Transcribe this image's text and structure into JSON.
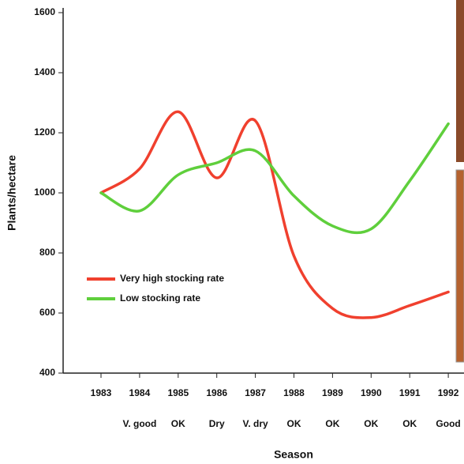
{
  "chart_data": {
    "type": "line",
    "y_label": "Plants/hectare",
    "x_label": "Season",
    "categories": [
      "1983",
      "1984",
      "1985",
      "1986",
      "1987",
      "1988",
      "1989",
      "1990",
      "1991",
      "1992"
    ],
    "season_labels": [
      null,
      "V. good",
      "OK",
      "Dry",
      "V. dry",
      "OK",
      "OK",
      "OK",
      "OK",
      "Good"
    ],
    "series": [
      {
        "name": "Very high stocking rate",
        "color": "#f0402e",
        "values": [
          1000,
          1080,
          1270,
          1050,
          1240,
          790,
          615,
          585,
          625,
          670
        ]
      },
      {
        "name": "Low stocking rate",
        "color": "#5fcf3c",
        "values": [
          1000,
          940,
          1060,
          1100,
          1140,
          990,
          890,
          880,
          1040,
          1230
        ]
      }
    ],
    "ylim": [
      400,
      1600
    ],
    "yticks": [
      400,
      600,
      800,
      1000,
      1200,
      1400,
      1600
    ],
    "legend": "lower left"
  }
}
